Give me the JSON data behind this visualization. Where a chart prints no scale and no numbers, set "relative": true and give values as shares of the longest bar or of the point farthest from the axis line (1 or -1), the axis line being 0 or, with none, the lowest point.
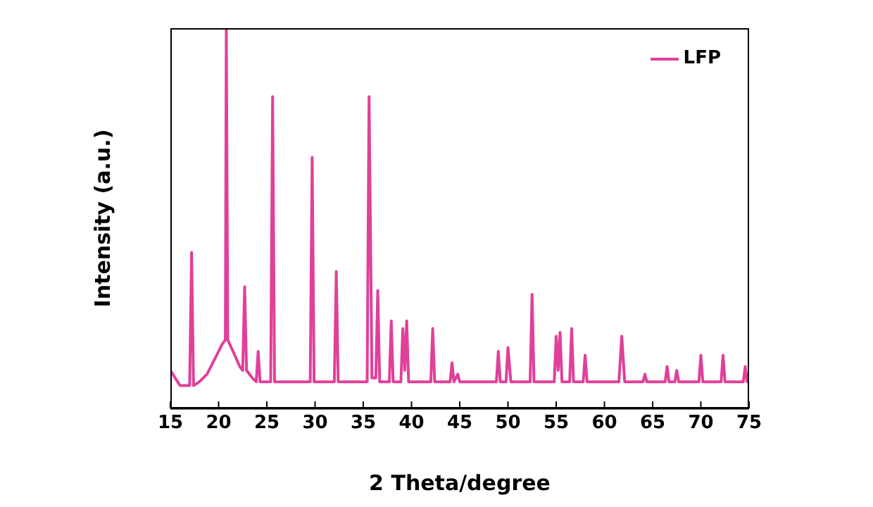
{
  "chart_data": {
    "type": "line",
    "relative": true,
    "xlabel": "2 Theta/degree",
    "ylabel": "Intensity (a.u.)",
    "xlim": [
      15,
      75
    ],
    "xticks": [
      15,
      20,
      25,
      30,
      35,
      40,
      45,
      50,
      55,
      60,
      65,
      70,
      75
    ],
    "legend": "top right",
    "series": [
      {
        "name": "LFP",
        "color": "#e0409a",
        "x": [
          15,
          15.5,
          16,
          17.0,
          17.2,
          17.4,
          18,
          18.8,
          19.6,
          20.4,
          20.7,
          20.8,
          20.95,
          21.5,
          22.2,
          22.5,
          22.7,
          22.9,
          23.5,
          23.9,
          24.1,
          24.3,
          25.4,
          25.6,
          25.8,
          27,
          29.5,
          29.7,
          29.9,
          32.0,
          32.2,
          32.4,
          35.4,
          35.6,
          35.9,
          36.3,
          36.5,
          36.7,
          37.7,
          37.9,
          38.1,
          38.9,
          39.1,
          39.3,
          39.5,
          39.7,
          42.0,
          42.2,
          42.4,
          44.0,
          44.2,
          44.4,
          44.8,
          45.0,
          48.8,
          49.0,
          49.2,
          49.8,
          50.0,
          50.3,
          52.3,
          52.5,
          52.7,
          54.8,
          55.0,
          55.2,
          55.4,
          55.6,
          56.4,
          56.6,
          56.8,
          57.8,
          58.0,
          58.2,
          61.5,
          61.8,
          62.1,
          64,
          64.2,
          64.4,
          66.3,
          66.5,
          66.7,
          67.3,
          67.5,
          67.7,
          69.8,
          70.0,
          70.2,
          72.1,
          72.3,
          72.5,
          74.4,
          74.6,
          74.8,
          75
        ],
        "values": [
          0.1,
          0.08,
          0.06,
          0.06,
          0.41,
          0.06,
          0.07,
          0.09,
          0.13,
          0.17,
          0.18,
          1.0,
          0.18,
          0.15,
          0.11,
          0.1,
          0.32,
          0.1,
          0.08,
          0.07,
          0.15,
          0.07,
          0.07,
          0.82,
          0.07,
          0.07,
          0.07,
          0.66,
          0.07,
          0.07,
          0.36,
          0.07,
          0.07,
          0.82,
          0.08,
          0.08,
          0.31,
          0.07,
          0.07,
          0.23,
          0.07,
          0.07,
          0.21,
          0.1,
          0.23,
          0.07,
          0.07,
          0.21,
          0.07,
          0.07,
          0.12,
          0.07,
          0.09,
          0.07,
          0.07,
          0.15,
          0.07,
          0.07,
          0.16,
          0.07,
          0.07,
          0.3,
          0.07,
          0.07,
          0.19,
          0.1,
          0.2,
          0.07,
          0.07,
          0.21,
          0.07,
          0.07,
          0.14,
          0.07,
          0.07,
          0.19,
          0.07,
          0.07,
          0.09,
          0.07,
          0.07,
          0.11,
          0.07,
          0.07,
          0.1,
          0.07,
          0.07,
          0.14,
          0.07,
          0.07,
          0.14,
          0.07,
          0.07,
          0.11,
          0.07,
          0.07
        ]
      }
    ]
  }
}
